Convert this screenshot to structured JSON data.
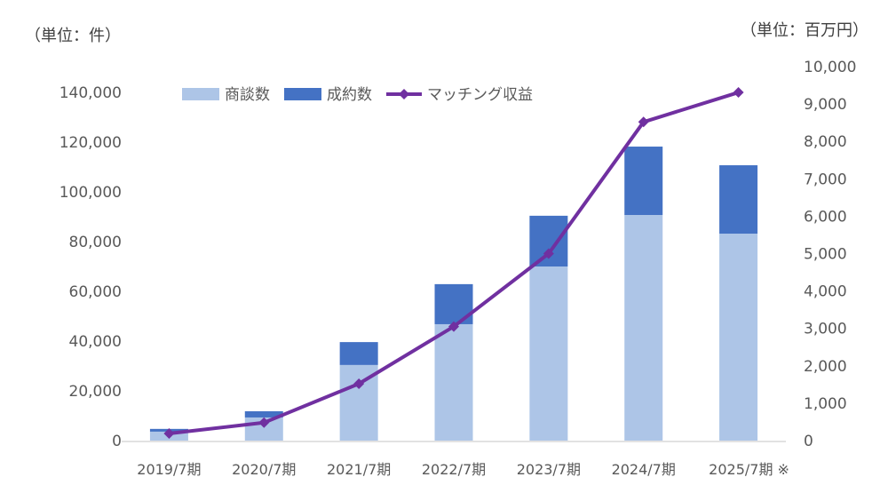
{
  "chart_data": {
    "type": "bar",
    "left_unit": "（単位：件）",
    "right_unit": "（単位：百万円）",
    "categories": [
      "2019/7期",
      "2020/7期",
      "2021/7期",
      "2022/7期",
      "2023/7期",
      "2024/7期",
      "2025/7期 ※"
    ],
    "series": [
      {
        "name": "商談数",
        "type": "bar",
        "stack": "main",
        "axis": "left",
        "color": "#ADC5E7",
        "values": [
          3600,
          9300,
          30400,
          46800,
          70000,
          90700,
          83200
        ]
      },
      {
        "name": "成約数",
        "type": "bar",
        "stack": "main",
        "axis": "left",
        "color": "#4472C4",
        "values": [
          1100,
          2500,
          9200,
          16100,
          20400,
          27500,
          27500
        ]
      },
      {
        "name": "マッチング収益",
        "type": "line",
        "axis": "right",
        "marker": "diamond",
        "color": "#7030A0",
        "values": [
          190,
          480,
          1520,
          3050,
          5000,
          8520,
          9310
        ]
      }
    ],
    "left_axis": {
      "range": [
        0,
        140000
      ],
      "ticks": [
        "0",
        "20,000",
        "40,000",
        "60,000",
        "80,000",
        "100,000",
        "120,000",
        "140,000"
      ]
    },
    "right_axis": {
      "range": [
        0,
        10000
      ],
      "ticks": [
        "0",
        "1,000",
        "2,000",
        "3,000",
        "4,000",
        "5,000",
        "6,000",
        "7,000",
        "8,000",
        "9,000",
        "10,000"
      ]
    },
    "grid": false,
    "legend_position": "top"
  }
}
